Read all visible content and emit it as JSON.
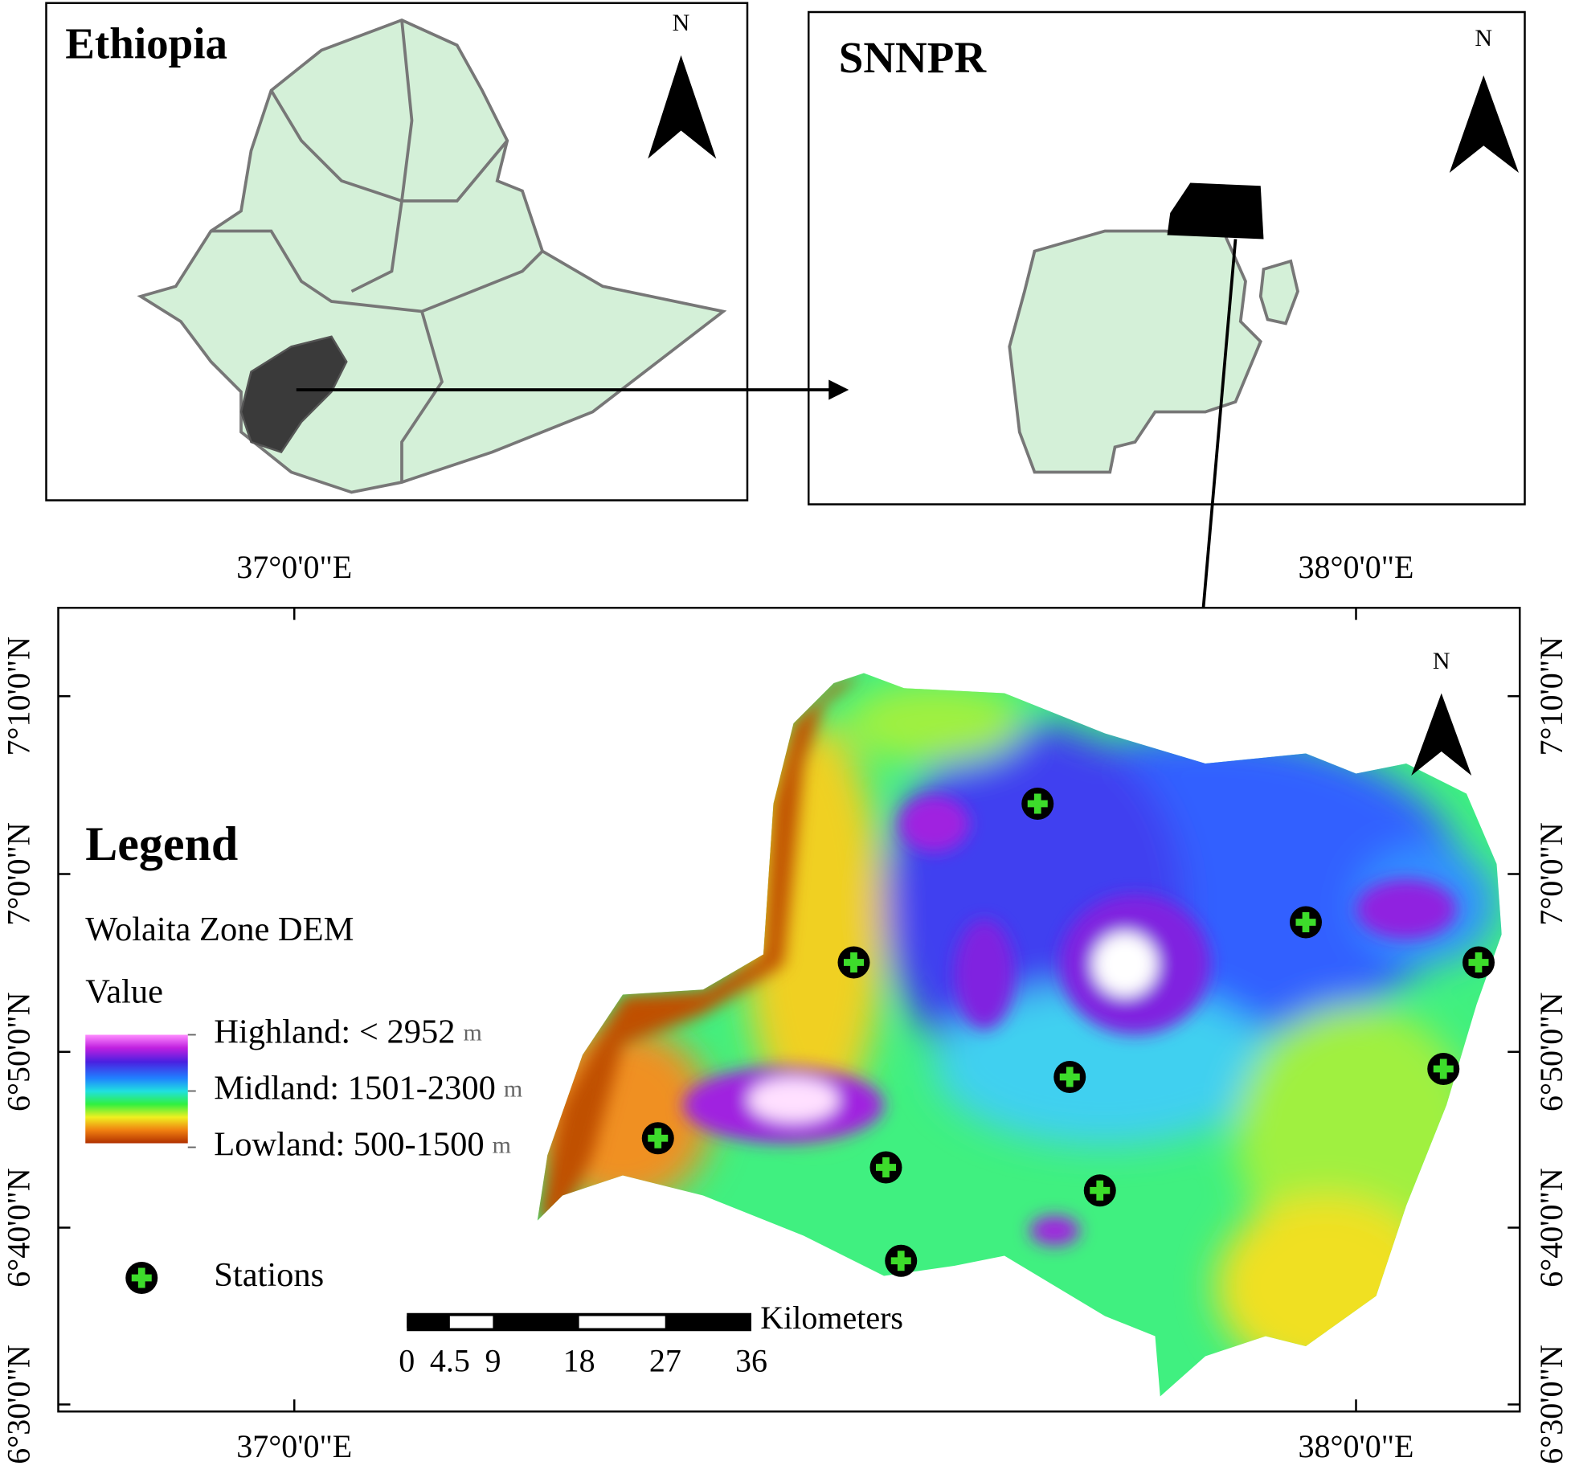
{
  "ethiopia_panel": {
    "title": "Ethiopia",
    "north": "N"
  },
  "snnpr_panel": {
    "title": "SNNPR",
    "north": "N"
  },
  "main_map": {
    "north": "N",
    "longitude_labels": [
      "37°0'0\"E",
      "38°0'0\"E"
    ],
    "latitude_labels": [
      "7°10'0\"N",
      "7°0'0\"N",
      "6°50'0\"N",
      "6°40'0\"N",
      "6°30'0\"N"
    ],
    "legend": {
      "title": "Legend",
      "layer": "Wolaita Zone DEM",
      "value_heading": "Value",
      "classes": [
        {
          "label": "Highland: < 2952",
          "unit": "m"
        },
        {
          "label": "Midland: 1501-2300",
          "unit": "m"
        },
        {
          "label": "Lowland: 500-1500",
          "unit": "m"
        }
      ],
      "stations": "Stations"
    },
    "scale_bar": {
      "ticks": [
        0,
        4.5,
        9,
        18,
        27,
        36
      ],
      "unit": "Kilometers"
    }
  }
}
